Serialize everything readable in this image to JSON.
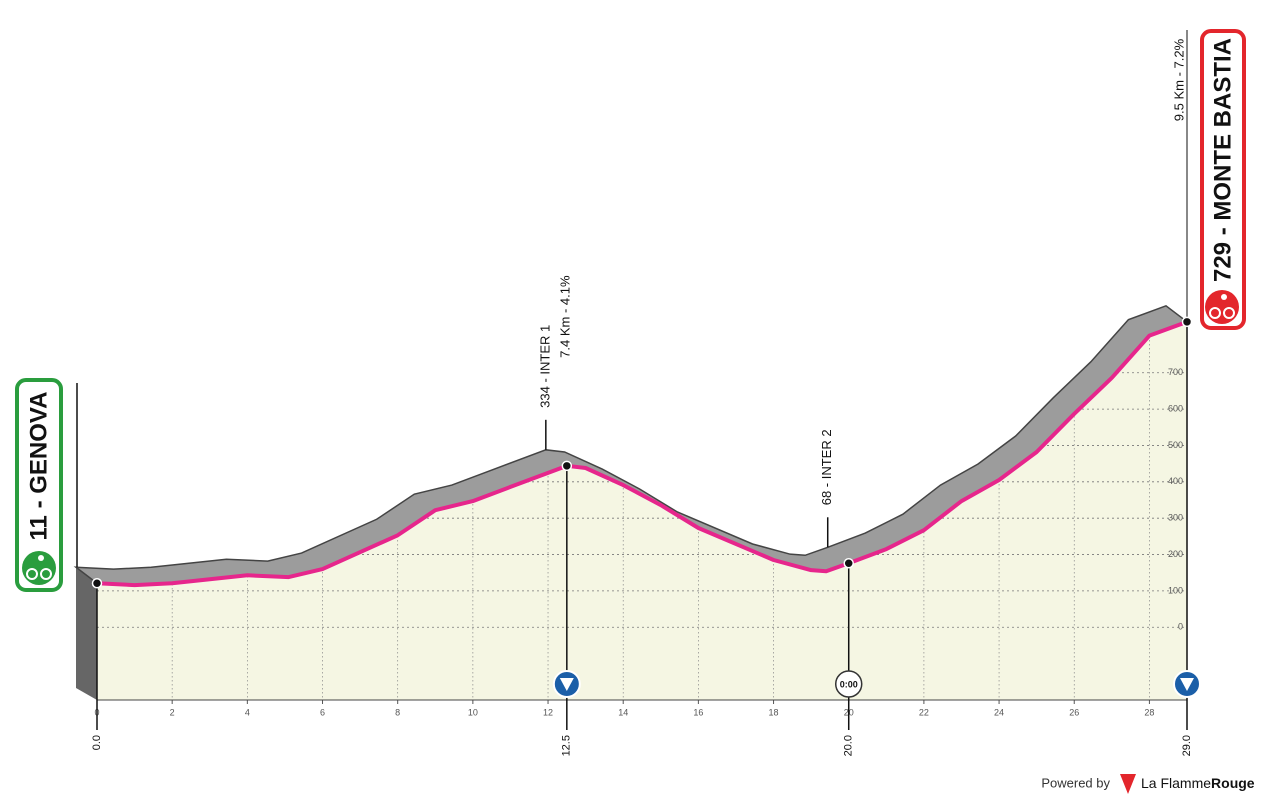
{
  "chart_data": {
    "type": "profile",
    "x": [
      0,
      1,
      2,
      4,
      5.1,
      6,
      8,
      9,
      10,
      11,
      12.5,
      13,
      14,
      15,
      16,
      18,
      19,
      19.4,
      20,
      21,
      22,
      23,
      24,
      25,
      26,
      27,
      28,
      29
    ],
    "values": [
      121,
      116,
      121,
      143,
      138,
      160,
      253,
      322,
      347,
      386,
      444,
      438,
      391,
      336,
      273,
      185,
      157,
      154,
      176,
      215,
      267,
      347,
      405,
      482,
      587,
      686,
      802,
      840
    ],
    "color": "#e6268c",
    "xlim": [
      0,
      29
    ],
    "ylim": [
      -200,
      1725
    ],
    "xticks": [
      0,
      2,
      4,
      6,
      8,
      10,
      12,
      14,
      16,
      18,
      20,
      22,
      24,
      26,
      28
    ],
    "yticks": [
      0,
      100,
      200,
      300,
      400,
      500,
      600,
      700
    ],
    "grid": true,
    "km_markers": [
      {
        "value": 0,
        "label": "0.0"
      },
      12.5,
      {
        "value": 20,
        "label": "20.0"
      },
      {
        "value": 29,
        "label": "29.0"
      }
    ],
    "start": "11 - GENOVA",
    "finish": "729 - MONTE BASTIA",
    "finish_climb": "9.5 Km - 7.2%",
    "points": [
      {
        "name": "334 - INTER 1",
        "detail": "7.4 Km - 4.1%",
        "km": 12.5
      },
      {
        "name": "68 - INTER 2",
        "km": 20,
        "time": "0:00"
      }
    ],
    "powered_by": "Powered by",
    "brand": "La Flamme",
    "brand_bold": "Rouge"
  }
}
